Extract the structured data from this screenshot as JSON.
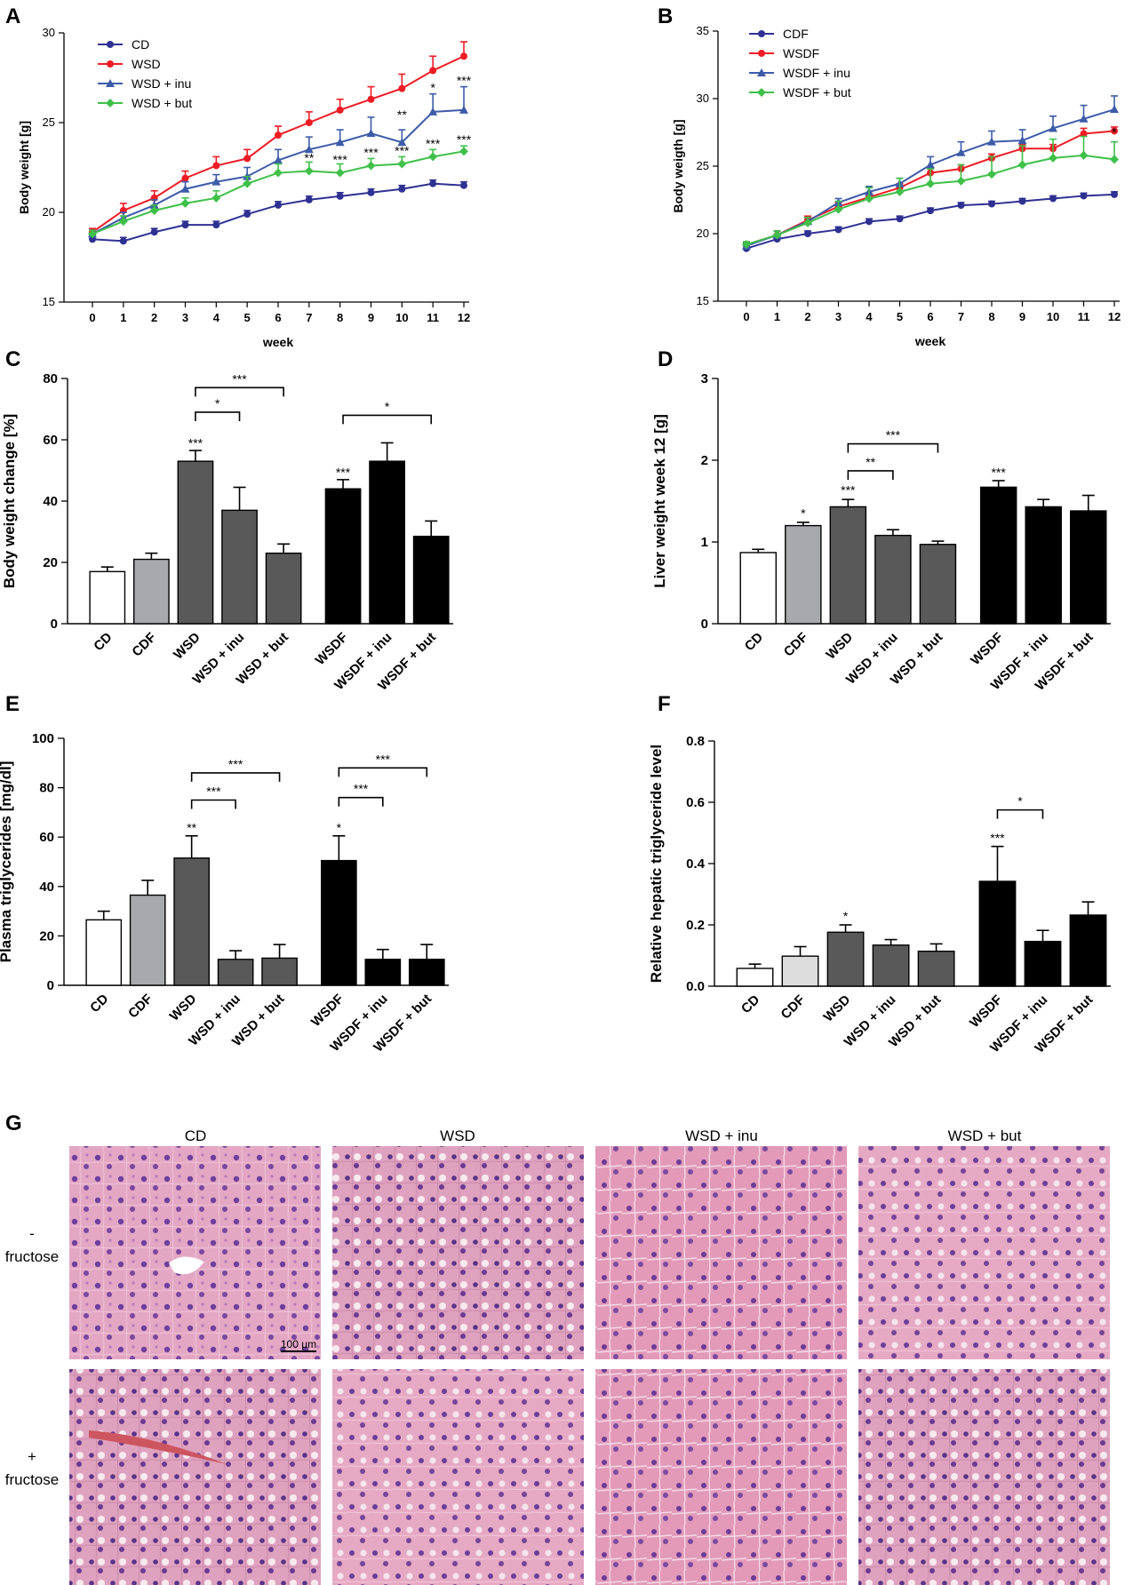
{
  "chart_data": [
    {
      "panel": "A",
      "type": "line",
      "xlabel": "week",
      "ylabel": "Body weight [g]",
      "xlim": [
        0,
        12
      ],
      "ylim": [
        15,
        30
      ],
      "yticks": [
        15,
        20,
        25,
        30
      ],
      "x": [
        0,
        1,
        2,
        3,
        4,
        5,
        6,
        7,
        8,
        9,
        10,
        11,
        12
      ],
      "series": [
        {
          "name": "CD",
          "color": "#2e3192",
          "marker": "circle",
          "values": [
            18.5,
            18.4,
            18.9,
            19.3,
            19.3,
            19.9,
            20.4,
            20.7,
            20.9,
            21.1,
            21.3,
            21.6,
            21.5
          ],
          "errors": [
            0.2,
            0.2,
            0.2,
            0.2,
            0.2,
            0.2,
            0.2,
            0.2,
            0.2,
            0.2,
            0.2,
            0.2,
            0.2
          ]
        },
        {
          "name": "WSD",
          "color": "#ed1c24",
          "marker": "circle",
          "values": [
            18.9,
            20.1,
            20.8,
            21.9,
            22.6,
            23.0,
            24.3,
            25.0,
            25.7,
            26.3,
            26.9,
            27.9,
            28.7
          ],
          "errors": [
            0.2,
            0.4,
            0.4,
            0.4,
            0.5,
            0.5,
            0.5,
            0.6,
            0.6,
            0.7,
            0.8,
            0.8,
            0.8
          ]
        },
        {
          "name": "WSD + inu",
          "color": "#3c5ba9",
          "marker": "triangle",
          "values": [
            18.8,
            19.7,
            20.4,
            21.3,
            21.7,
            22.0,
            22.9,
            23.5,
            23.9,
            24.4,
            23.9,
            25.6,
            25.7
          ],
          "errors": [
            0.2,
            0.3,
            0.3,
            0.4,
            0.4,
            0.5,
            0.6,
            0.7,
            0.7,
            0.9,
            0.7,
            1.0,
            1.3
          ]
        },
        {
          "name": "WSD + but",
          "color": "#3fc049",
          "marker": "diamond",
          "values": [
            18.8,
            19.5,
            20.1,
            20.5,
            20.8,
            21.6,
            22.2,
            22.3,
            22.2,
            22.6,
            22.7,
            23.1,
            23.4
          ],
          "errors": [
            0.2,
            0.3,
            0.3,
            0.3,
            0.4,
            0.4,
            0.5,
            0.5,
            0.5,
            0.4,
            0.4,
            0.4,
            0.3
          ]
        }
      ],
      "annotations": [
        {
          "x": 7,
          "y": 22.8,
          "text": "**"
        },
        {
          "x": 8,
          "y": 22.7,
          "text": "***"
        },
        {
          "x": 9,
          "y": 23.1,
          "text": "***"
        },
        {
          "x": 10,
          "y": 23.2,
          "text": "***"
        },
        {
          "x": 11,
          "y": 23.6,
          "text": "***"
        },
        {
          "x": 12,
          "y": 23.8,
          "text": "***"
        },
        {
          "x": 10,
          "y": 25.2,
          "text": "**"
        },
        {
          "x": 11,
          "y": 26.7,
          "text": "*"
        },
        {
          "x": 12,
          "y": 27.1,
          "text": "***"
        }
      ]
    },
    {
      "panel": "B",
      "type": "line",
      "xlabel": "week",
      "ylabel": "Body weigth [g]",
      "xlim": [
        0,
        12
      ],
      "ylim": [
        15,
        35
      ],
      "yticks": [
        15,
        20,
        25,
        30,
        35
      ],
      "x": [
        0,
        1,
        2,
        3,
        4,
        5,
        6,
        7,
        8,
        9,
        10,
        11,
        12
      ],
      "series": [
        {
          "name": "CDF",
          "color": "#2e3192",
          "marker": "circle",
          "values": [
            18.9,
            19.6,
            20.0,
            20.3,
            20.9,
            21.1,
            21.7,
            22.1,
            22.2,
            22.4,
            22.6,
            22.8,
            22.9
          ],
          "errors": [
            0.2,
            0.2,
            0.2,
            0.2,
            0.2,
            0.2,
            0.2,
            0.2,
            0.2,
            0.2,
            0.2,
            0.2,
            0.2
          ]
        },
        {
          "name": "WSDF",
          "color": "#ed1c24",
          "marker": "circle",
          "values": [
            19.2,
            19.9,
            21.0,
            22.0,
            22.7,
            23.4,
            24.5,
            24.8,
            25.6,
            26.3,
            26.3,
            27.4,
            27.6
          ],
          "errors": [
            0.2,
            0.3,
            0.3,
            0.3,
            0.3,
            0.3,
            0.3,
            0.3,
            0.3,
            0.3,
            0.3,
            0.4,
            0.3
          ]
        },
        {
          "name": "WSDF + inu",
          "color": "#3c5ba9",
          "marker": "triangle",
          "values": [
            19.1,
            19.9,
            20.9,
            22.3,
            23.1,
            23.7,
            25.1,
            26.0,
            26.8,
            26.9,
            27.8,
            28.5,
            29.2
          ],
          "errors": [
            0.2,
            0.3,
            0.3,
            0.3,
            0.4,
            0.4,
            0.6,
            0.8,
            0.8,
            0.8,
            0.9,
            1.0,
            1.0
          ]
        },
        {
          "name": "WSDF + but",
          "color": "#3fc049",
          "marker": "diamond",
          "values": [
            19.2,
            19.9,
            20.8,
            21.8,
            22.6,
            23.1,
            23.7,
            23.9,
            24.4,
            25.1,
            25.6,
            25.8,
            25.5
          ],
          "errors": [
            0.2,
            0.3,
            0.4,
            0.6,
            0.8,
            1.0,
            1.1,
            1.2,
            1.3,
            1.4,
            1.4,
            1.4,
            1.3
          ]
        }
      ],
      "annotations": [
        {
          "x": 12,
          "y": 27.2,
          "text": "*"
        }
      ]
    },
    {
      "panel": "C",
      "type": "bar",
      "ylabel": "Body weight change [%]",
      "ylim": [
        0,
        80
      ],
      "yticks": [
        0,
        20,
        40,
        60,
        80
      ],
      "categories": [
        "CD",
        "CDF",
        "WSD",
        "WSD + inu",
        "WSD + but",
        "WSDF",
        "WSDF + inu",
        "WSDF + but"
      ],
      "values": [
        17,
        21,
        53,
        37,
        23,
        44,
        53,
        28.5
      ],
      "errors": [
        1.5,
        2,
        3.5,
        7.5,
        3,
        3,
        6,
        5
      ],
      "fills": [
        "#ffffff",
        "#a7a9ac",
        "#595959",
        "#595959",
        "#595959",
        "#000000",
        "#000000",
        "#000000"
      ],
      "stars": [
        {
          "index": 2,
          "y": 57.5,
          "text": "***"
        },
        {
          "index": 5,
          "y": 48,
          "text": "***"
        }
      ],
      "brackets": [
        {
          "from": 2,
          "to": 3,
          "y": 69,
          "text": "*"
        },
        {
          "from": 2,
          "to": 4,
          "y": 77,
          "text": "***"
        },
        {
          "from": 5,
          "to": 7,
          "y": 68,
          "text": "*"
        }
      ]
    },
    {
      "panel": "D",
      "type": "bar",
      "ylabel": "Liver weight week 12 [g]",
      "ylim": [
        0,
        3
      ],
      "yticks": [
        0,
        1,
        2,
        3
      ],
      "categories": [
        "CD",
        "CDF",
        "WSD",
        "WSD + inu",
        "WSD + but",
        "WSDF",
        "WSDF + inu",
        "WSDF + but"
      ],
      "values": [
        0.87,
        1.2,
        1.43,
        1.08,
        0.97,
        1.67,
        1.43,
        1.38
      ],
      "errors": [
        0.04,
        0.04,
        0.09,
        0.07,
        0.04,
        0.08,
        0.09,
        0.19
      ],
      "fills": [
        "#ffffff",
        "#a7a9ac",
        "#595959",
        "#595959",
        "#595959",
        "#000000",
        "#000000",
        "#000000"
      ],
      "stars": [
        {
          "index": 1,
          "y": 1.3,
          "text": "*"
        },
        {
          "index": 2,
          "y": 1.58,
          "text": "***"
        },
        {
          "index": 5,
          "y": 1.8,
          "text": "***"
        }
      ],
      "brackets": [
        {
          "from": 2,
          "to": 3,
          "y": 1.87,
          "text": "**"
        },
        {
          "from": 2,
          "to": 4,
          "y": 2.2,
          "text": "***"
        }
      ]
    },
    {
      "panel": "E",
      "type": "bar",
      "ylabel": "Plasma triglycerides [mg/dl]",
      "ylim": [
        0,
        100
      ],
      "yticks": [
        0,
        20,
        40,
        60,
        80,
        100
      ],
      "categories": [
        "CD",
        "CDF",
        "WSD",
        "WSD + inu",
        "WSD + but",
        "WSDF",
        "WSDF + inu",
        "WSDF + but"
      ],
      "values": [
        26.5,
        36.5,
        51.5,
        10.5,
        11,
        50.5,
        10.5,
        10.5
      ],
      "errors": [
        3.5,
        6,
        9,
        3.5,
        5.5,
        10,
        4,
        6
      ],
      "fills": [
        "#ffffff",
        "#a7a9ac",
        "#595959",
        "#595959",
        "#595959",
        "#000000",
        "#000000",
        "#000000"
      ],
      "stars": [
        {
          "index": 2,
          "y": 62,
          "text": "**"
        },
        {
          "index": 5,
          "y": 62,
          "text": "*"
        }
      ],
      "brackets": [
        {
          "from": 2,
          "to": 3,
          "y": 75,
          "text": "***"
        },
        {
          "from": 2,
          "to": 4,
          "y": 86,
          "text": "***"
        },
        {
          "from": 5,
          "to": 6,
          "y": 76,
          "text": "***"
        },
        {
          "from": 5,
          "to": 7,
          "y": 88,
          "text": "***"
        }
      ]
    },
    {
      "panel": "F",
      "type": "bar",
      "ylabel": "Relative hepatic triglyceride level",
      "ylim": [
        0,
        0.8
      ],
      "yticks": [
        0.0,
        0.2,
        0.4,
        0.6,
        0.8
      ],
      "tickFormat": "1dp",
      "categories": [
        "CD",
        "CDF",
        "WSD",
        "WSD + inu",
        "WSD + but",
        "WSDF",
        "WSDF + inu",
        "WSDF + but"
      ],
      "values": [
        0.058,
        0.098,
        0.176,
        0.134,
        0.114,
        0.342,
        0.146,
        0.232
      ],
      "errors": [
        0.014,
        0.031,
        0.024,
        0.018,
        0.024,
        0.114,
        0.036,
        0.043
      ],
      "fills": [
        "#ffffff",
        "#dcdcdc",
        "#595959",
        "#595959",
        "#595959",
        "#000000",
        "#000000",
        "#000000"
      ],
      "stars": [
        {
          "index": 2,
          "y": 0.215,
          "text": "*"
        },
        {
          "index": 5,
          "y": 0.47,
          "text": "***"
        }
      ],
      "brackets": [
        {
          "from": 5,
          "to": 6,
          "y": 0.575,
          "text": "*"
        }
      ]
    }
  ],
  "histology": {
    "panel": "G",
    "columns": [
      "CD",
      "WSD",
      "WSD + inu",
      "WSD + but"
    ],
    "rows": [
      {
        "sign": "-",
        "label": "fructose"
      },
      {
        "sign": "+",
        "label": "fructose"
      }
    ],
    "scale_bar": "100 µm"
  }
}
